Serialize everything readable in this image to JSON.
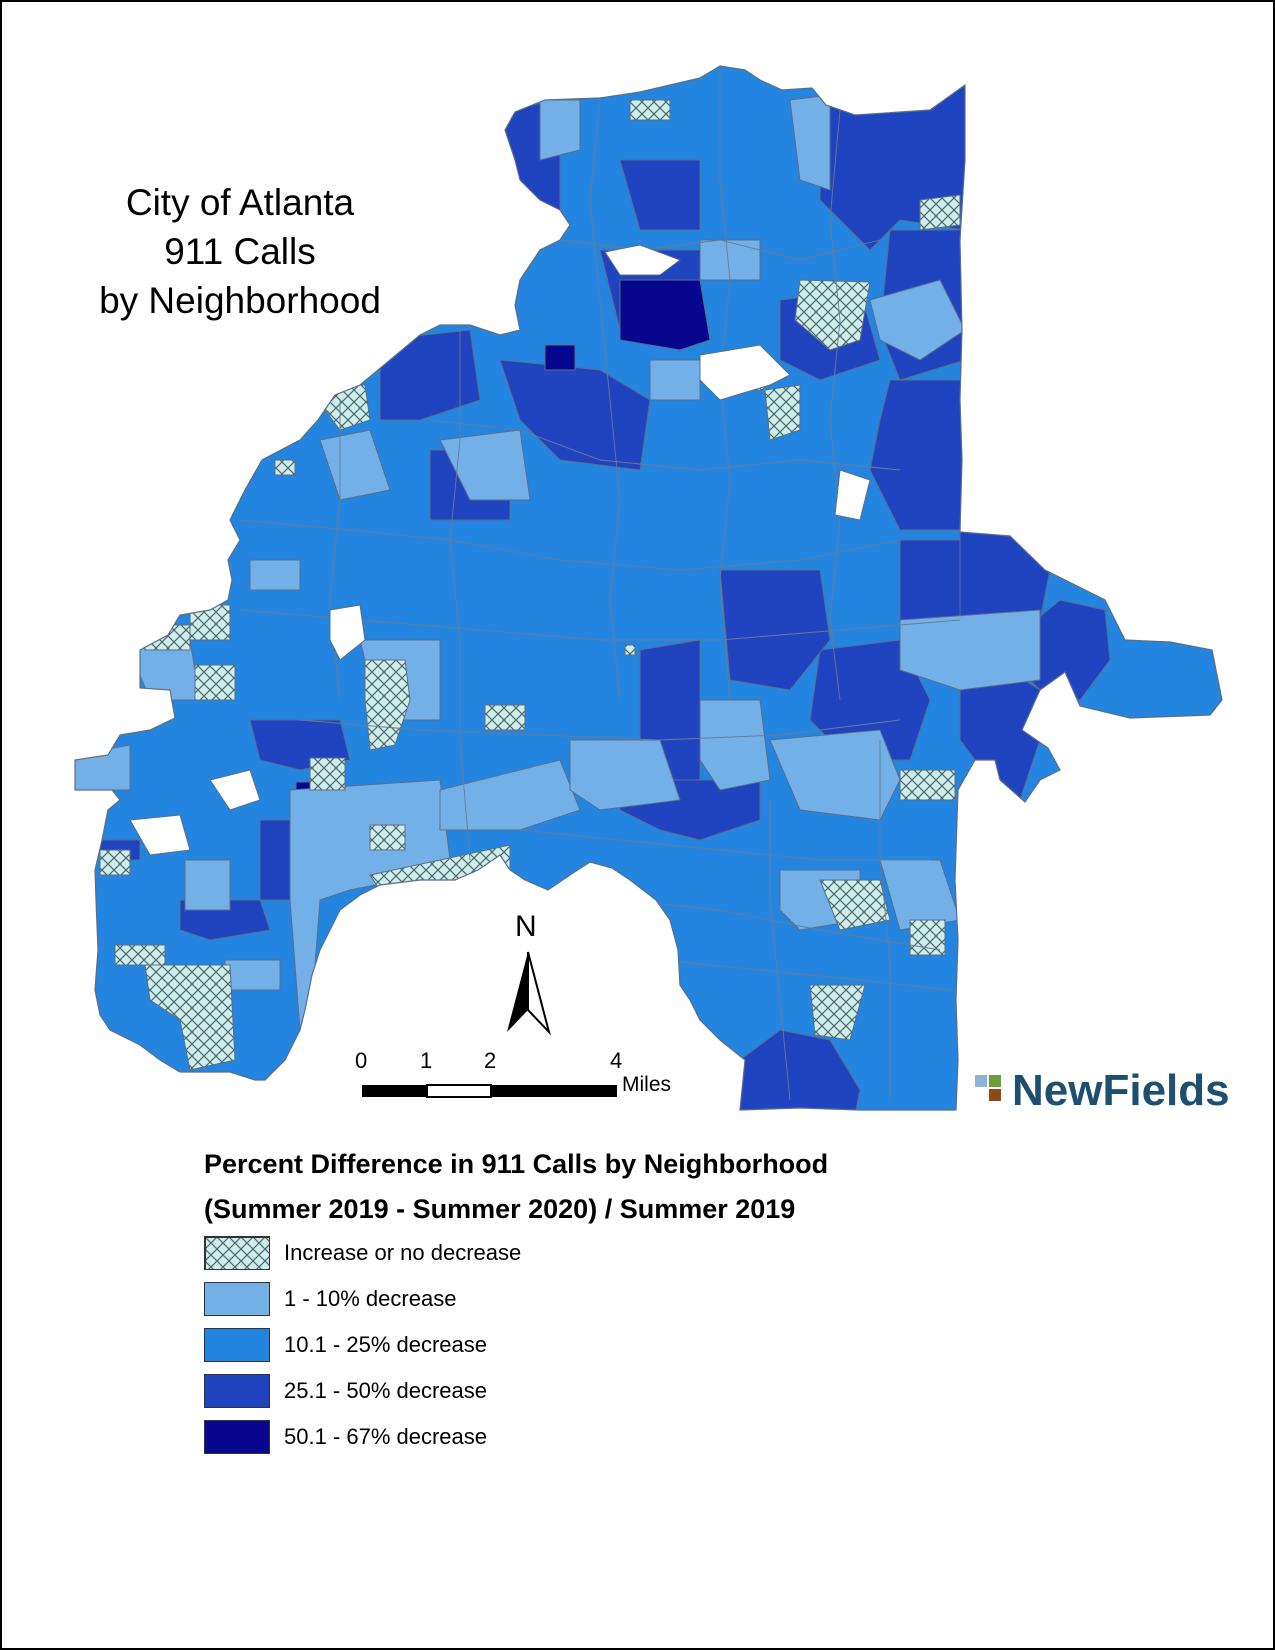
{
  "title": {
    "line1": "City of Atlanta",
    "line2": "911 Calls",
    "line3": "by Neighborhood"
  },
  "north_arrow": {
    "label": "N"
  },
  "scale_bar": {
    "ticks": [
      "0",
      "1",
      "2",
      "4"
    ],
    "unit": "Miles"
  },
  "logo": {
    "text": "NewFields"
  },
  "legend": {
    "title_line1": "Percent Difference in 911 Calls by Neighborhood",
    "title_line2": "(Summer 2019 - Summer 2020) / Summer 2019",
    "items": [
      {
        "label": "Increase or no decrease",
        "color": "#cfeee9",
        "pattern": "crosshatch"
      },
      {
        "label": "1 - 10% decrease",
        "color": "#74b0e8"
      },
      {
        "label": "10.1 - 25% decrease",
        "color": "#2485e0"
      },
      {
        "label": "25.1 - 50% decrease",
        "color": "#2044c0"
      },
      {
        "label": "50.1 - 67% decrease",
        "color": "#08088f"
      }
    ]
  }
}
